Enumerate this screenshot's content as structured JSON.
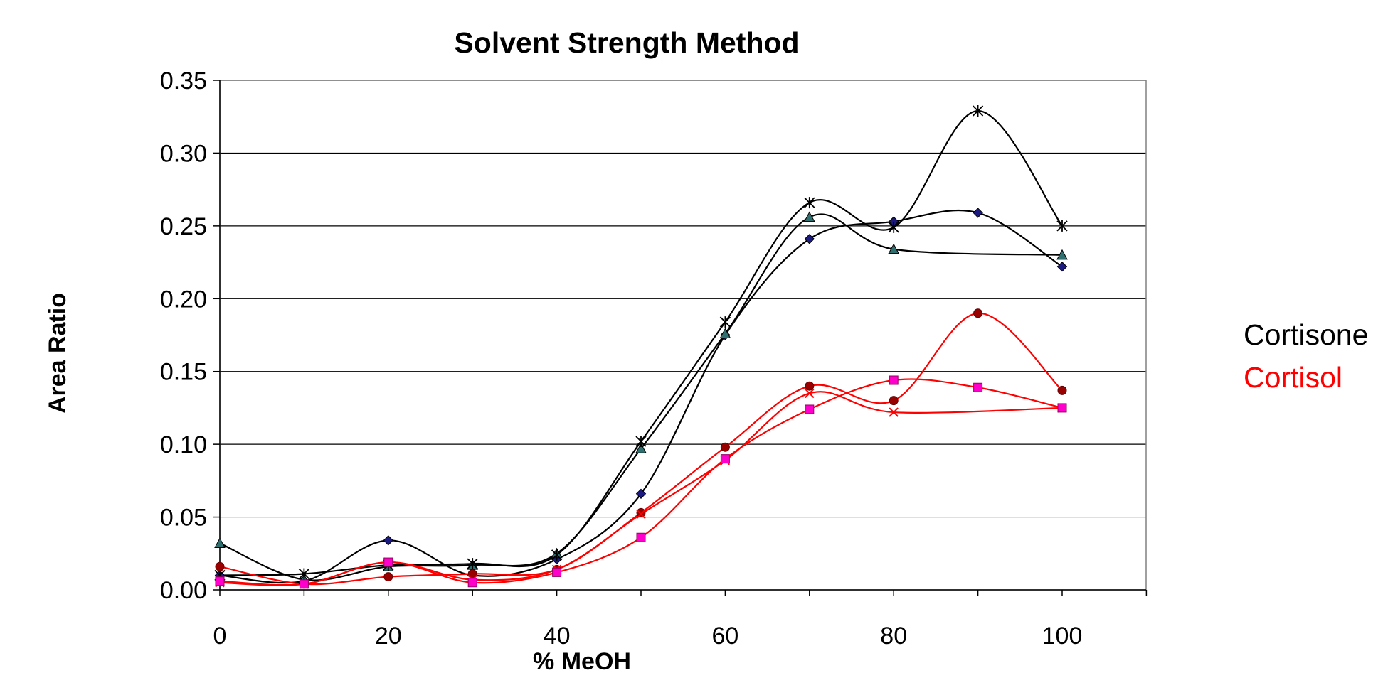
{
  "chart_data": {
    "type": "line",
    "title": "Solvent Strength Method",
    "xlabel": "% MeOH",
    "ylabel": "Area Ratio",
    "xlim": [
      0,
      110
    ],
    "ylim": [
      0,
      0.35
    ],
    "x_ticks": [
      "0",
      "20",
      "40",
      "60",
      "80",
      "100"
    ],
    "y_ticks": [
      "0.00",
      "0.05",
      "0.10",
      "0.15",
      "0.20",
      "0.25",
      "0.30",
      "0.35"
    ],
    "grid": true,
    "smooth_lines": true,
    "legend_position": "right",
    "legend": [
      {
        "label": "Cortisone",
        "color": "#000000"
      },
      {
        "label": "Cortisol",
        "color": "#ff0000"
      }
    ],
    "x": [
      0,
      10,
      20,
      30,
      40,
      50,
      60,
      70,
      80,
      90,
      100
    ],
    "series": [
      {
        "group": "Cortisone",
        "line_color": "#000000",
        "marker": "diamond",
        "marker_color": "#1a1a80",
        "values": [
          0.01,
          0.006,
          0.034,
          0.01,
          0.021,
          0.066,
          0.175,
          0.241,
          0.253,
          0.259,
          0.222
        ]
      },
      {
        "group": "Cortisone",
        "line_color": "#000000",
        "marker": "triangle",
        "marker_color": "#2f6f6f",
        "values": [
          0.032,
          0.007,
          0.016,
          0.017,
          0.025,
          0.097,
          0.176,
          0.256,
          0.234,
          null,
          0.23
        ]
      },
      {
        "group": "Cortisone",
        "line_color": "#000000",
        "marker": "star",
        "marker_color": "#000000",
        "values": [
          0.01,
          0.011,
          0.017,
          0.018,
          0.024,
          0.102,
          0.184,
          0.266,
          0.249,
          0.329,
          0.25
        ]
      },
      {
        "group": "Cortisol",
        "line_color": "#ff0000",
        "marker": "circle",
        "marker_color": "#990000",
        "values": [
          0.016,
          0.004,
          0.009,
          0.011,
          0.014,
          0.053,
          0.098,
          0.14,
          0.13,
          0.19,
          0.137
        ]
      },
      {
        "group": "Cortisol",
        "line_color": "#ff0000",
        "marker": "x",
        "marker_color": "#ff0000",
        "values": [
          0.005,
          0.004,
          0.019,
          0.007,
          0.014,
          0.052,
          0.089,
          0.135,
          0.122,
          null,
          0.125
        ]
      },
      {
        "group": "Cortisol",
        "line_color": "#ff0000",
        "marker": "square",
        "marker_color": "#ff00cc",
        "values": [
          0.006,
          0.004,
          0.019,
          0.005,
          0.012,
          0.036,
          0.09,
          0.124,
          0.144,
          0.139,
          0.125
        ]
      }
    ]
  }
}
